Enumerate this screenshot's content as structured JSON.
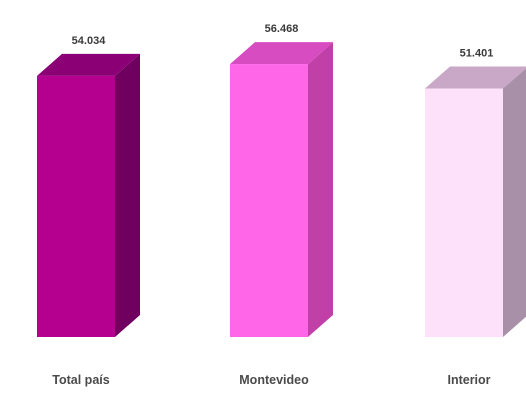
{
  "chart_data": {
    "type": "bar",
    "categories": [
      "Total país",
      "Montevideo",
      "Interior"
    ],
    "values": [
      54034,
      56468,
      51401
    ],
    "data_labels": [
      "54.034",
      "56.468",
      "51.401"
    ],
    "colors": {
      "front": [
        "#b5008f",
        "#ff66e8",
        "#fde0fa"
      ],
      "side": [
        "#700060",
        "#c040a8",
        "#a890a8"
      ],
      "top": [
        "#8c0075",
        "#d84cc2",
        "#c8a8c6"
      ]
    },
    "ylim": [
      0,
      60000
    ],
    "grid": false,
    "legend": "none",
    "title": "",
    "xlabel": "",
    "ylabel": ""
  }
}
